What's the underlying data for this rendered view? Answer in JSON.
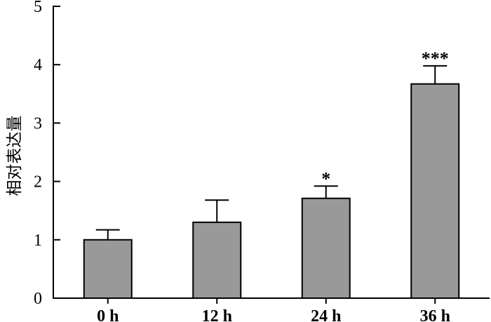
{
  "chart_data": {
    "type": "bar",
    "categories": [
      "0 h",
      "12 h",
      "24 h",
      "36 h"
    ],
    "values": [
      1.0,
      1.3,
      1.71,
      3.67
    ],
    "error_upper": [
      0.17,
      0.38,
      0.21,
      0.31
    ],
    "significance": [
      "",
      "",
      "*",
      "***"
    ],
    "ylabel": "相对表达量",
    "xlabel": "",
    "ylim": [
      0,
      5
    ],
    "yticks": [
      0,
      1,
      2,
      3,
      4,
      5
    ],
    "grid": false,
    "colors": {
      "bar_fill": "#999999",
      "bar_stroke": "#000000",
      "axis": "#000000"
    }
  }
}
